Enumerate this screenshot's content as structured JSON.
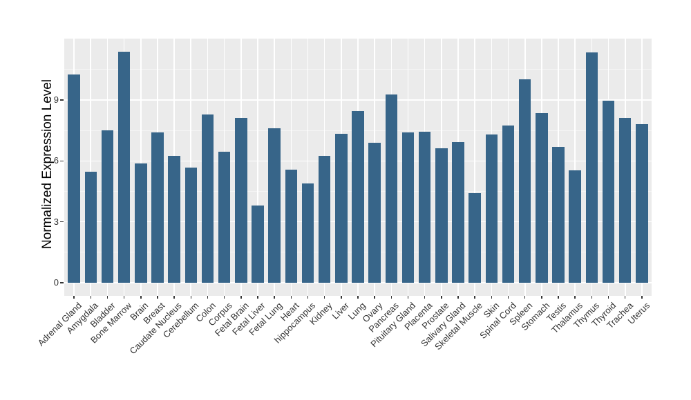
{
  "chart_data": {
    "type": "bar",
    "title": "",
    "xlabel": "",
    "ylabel": "Normalized Expression Level",
    "categories": [
      "Adrenal Gland",
      "Amygdala",
      "Bladder",
      "Bone Marrow",
      "Brain",
      "Breast",
      "Caudate Nucleus",
      "Cerebellum",
      "Colon",
      "Corpus",
      "Fetal Brain",
      "Fetal Liver",
      "Fetal Lung",
      "Heart",
      "hippocampus",
      "Kidney",
      "Liver",
      "Lung",
      "Ovary",
      "Pancreas",
      "Pituitary Gland",
      "Placenta",
      "Prostate",
      "Salivary Gland",
      "Skeletal Muscle",
      "Skin",
      "Spinal Cord",
      "Spleen",
      "Stomach",
      "Testis",
      "Thalamus",
      "Thymus",
      "Thyroid",
      "Trachea",
      "Uterus"
    ],
    "values": [
      10.27,
      5.48,
      7.52,
      11.37,
      5.88,
      7.41,
      6.24,
      5.66,
      8.3,
      6.46,
      8.11,
      3.82,
      7.6,
      5.58,
      4.89,
      6.24,
      7.35,
      8.46,
      6.9,
      9.27,
      7.4,
      7.42,
      6.61,
      6.93,
      4.41,
      7.31,
      7.75,
      10.03,
      8.35,
      6.68,
      5.54,
      11.34,
      8.95,
      8.1,
      7.8
    ],
    "yticks": [
      0,
      3,
      6,
      9
    ],
    "minor_gridlines": [
      1.5,
      4.5,
      7.5,
      10.5
    ],
    "ylim": [
      -0.65,
      12.0
    ],
    "bar_orientation": "vertical",
    "legend_position": "none",
    "grid": true,
    "colors": {
      "bar_fill": "#376589",
      "panel_background": "#EBEBEB",
      "grid_major": "#FFFFFF",
      "grid_minor": "#F5F5F5",
      "axis_text": "#333333",
      "tick_mark": "#333333",
      "axis_title": "#000000",
      "figure_background": "#FFFFFF"
    }
  }
}
